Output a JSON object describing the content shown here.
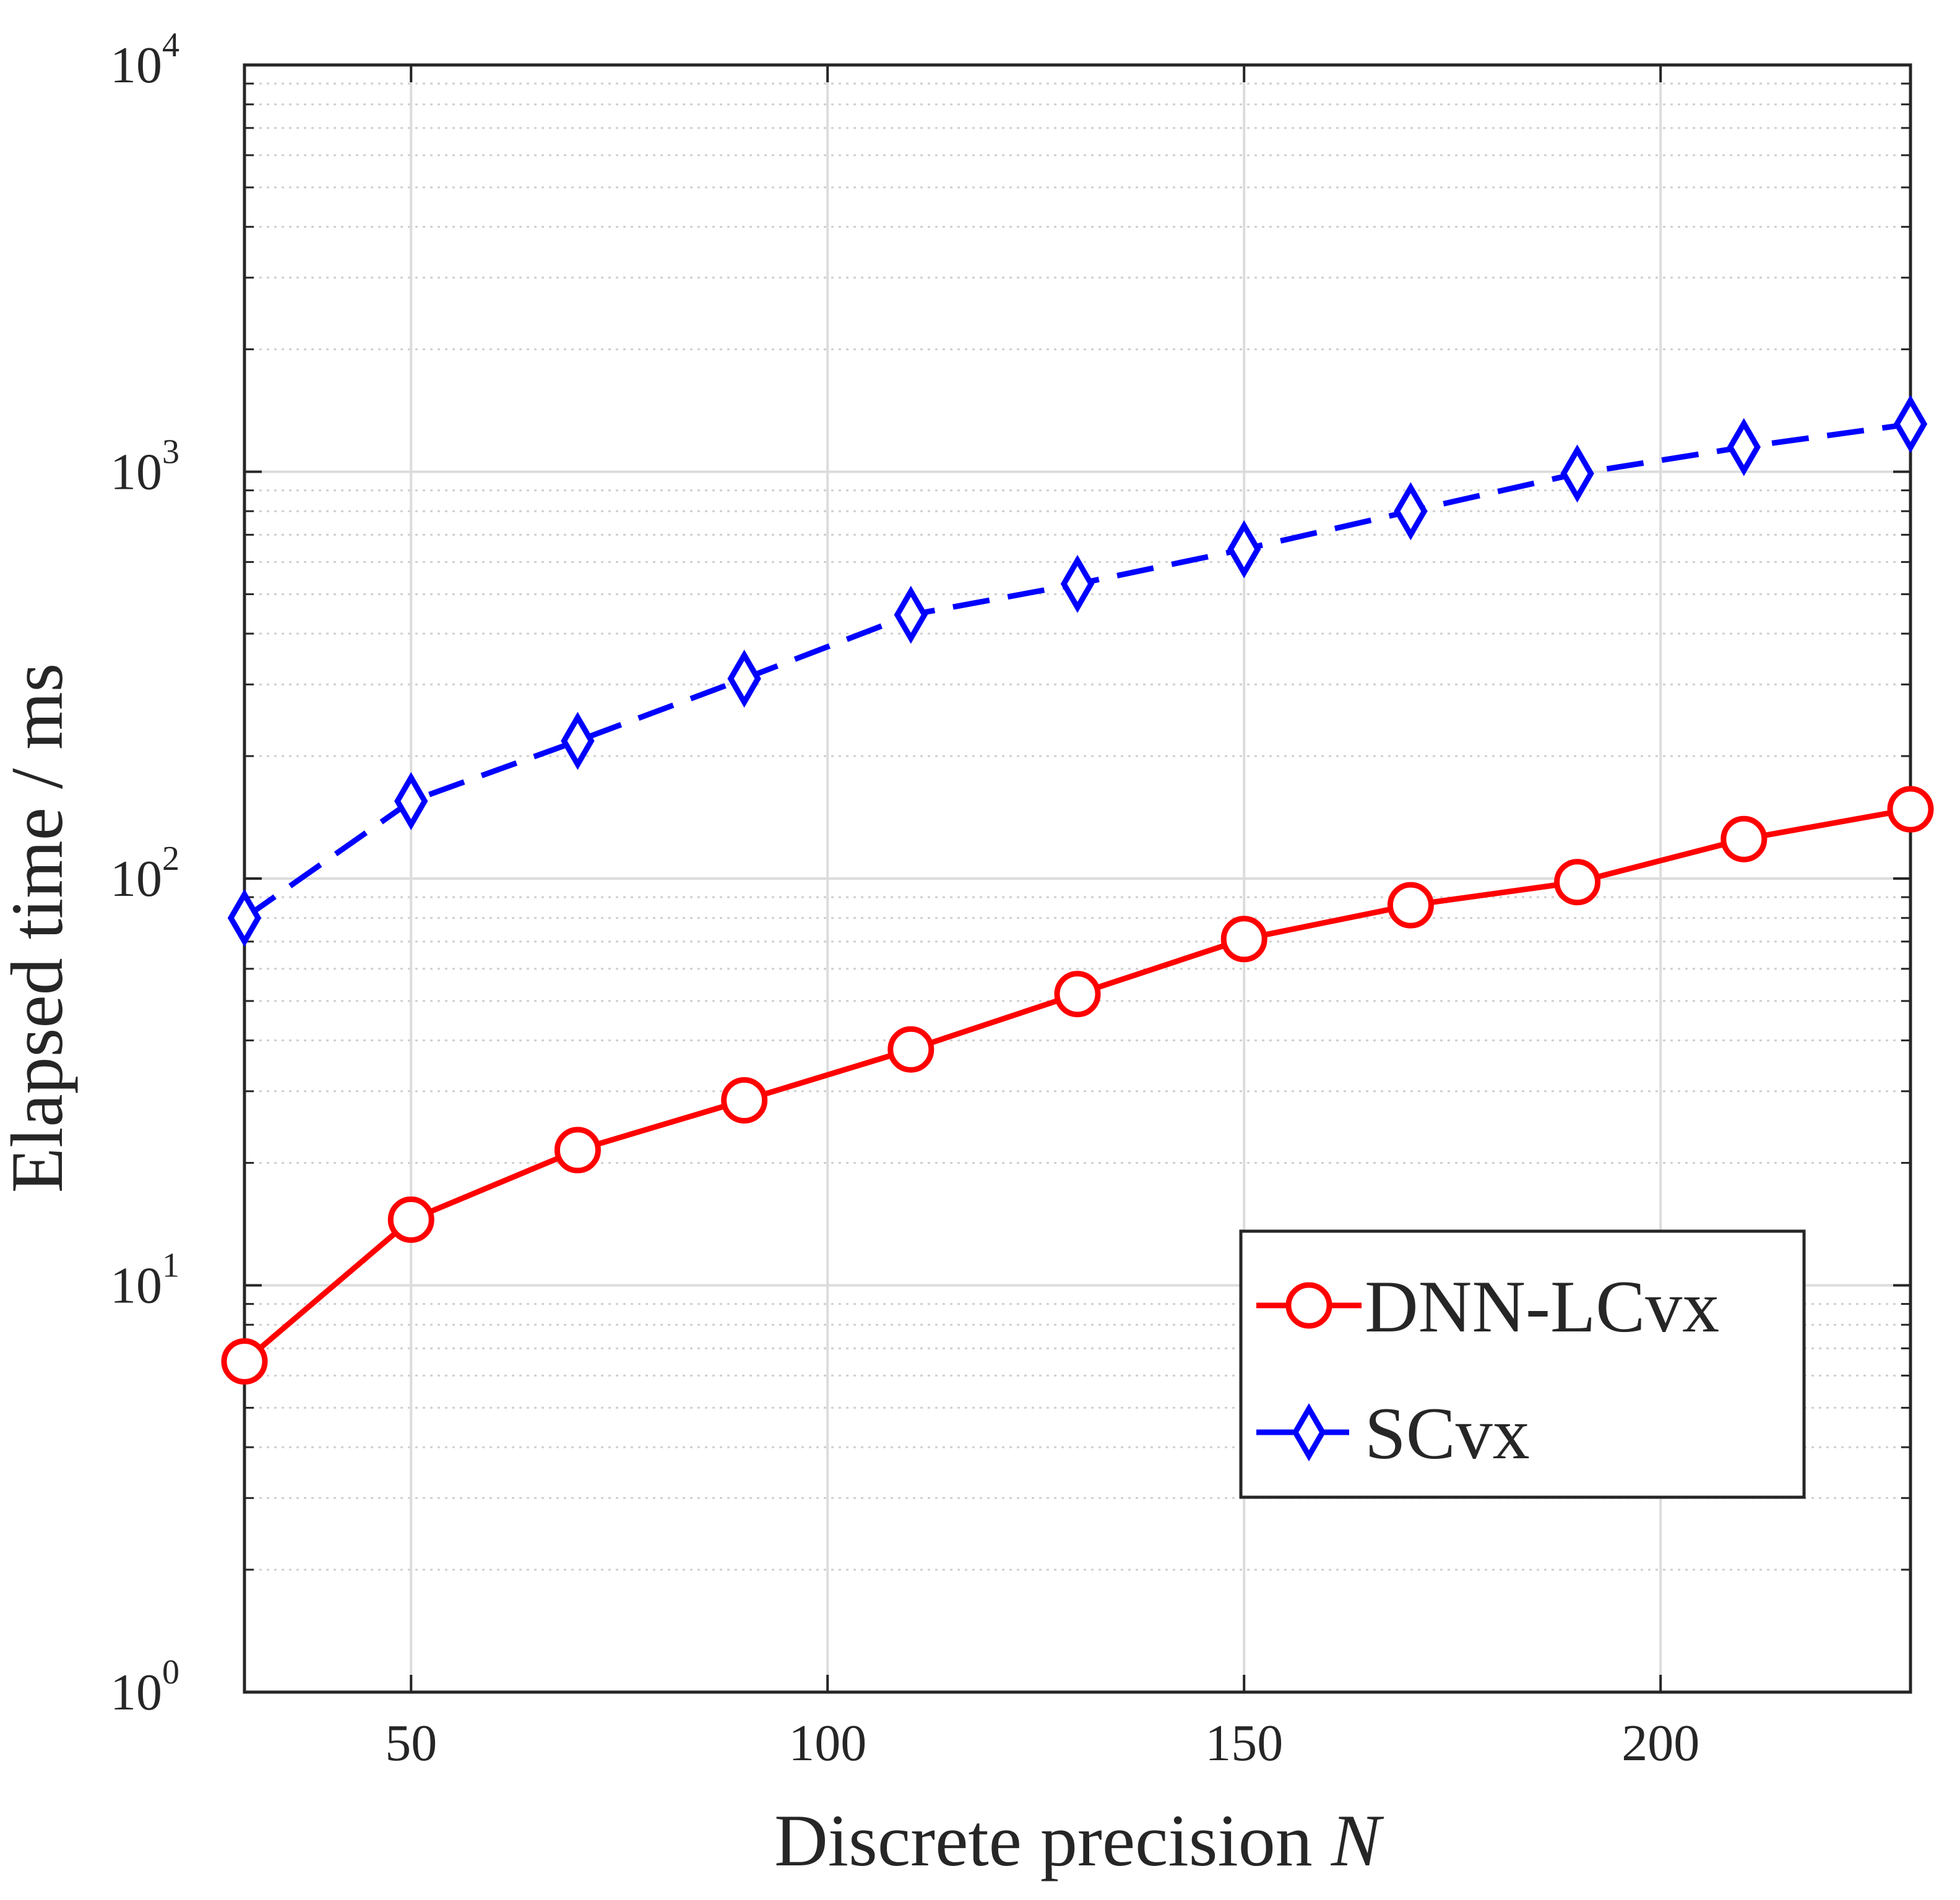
{
  "chart_data": {
    "type": "line",
    "yscale": "log",
    "xlabel": "Discrete precision",
    "xlabel_var": "N",
    "ylabel": "Elapsed time / ms",
    "xlim": [
      30,
      230
    ],
    "ylim": [
      1,
      10000
    ],
    "x_ticks": [
      50,
      100,
      150,
      200
    ],
    "y_ticks": [
      {
        "value": 1,
        "base": "10",
        "exp": "0"
      },
      {
        "value": 10,
        "base": "10",
        "exp": "1"
      },
      {
        "value": 100,
        "base": "10",
        "exp": "2"
      },
      {
        "value": 1000,
        "base": "10",
        "exp": "3"
      },
      {
        "value": 10000,
        "base": "10",
        "exp": "4"
      }
    ],
    "grid": true,
    "legend_position": "lower-right",
    "x": [
      30,
      50,
      70,
      90,
      110,
      130,
      150,
      170,
      190,
      210,
      230
    ],
    "series": [
      {
        "name": "DNN-LCvx",
        "color": "#ff0000",
        "line": "solid",
        "marker": "circle",
        "values": [
          6.5,
          14.5,
          21.5,
          28.5,
          38,
          52,
          71,
          86,
          98,
          125,
          148
        ]
      },
      {
        "name": "SCvx",
        "color": "#0000ff",
        "line": "dashed",
        "marker": "diamond",
        "values": [
          80,
          155,
          218,
          310,
          445,
          530,
          645,
          800,
          990,
          1150,
          1310
        ]
      }
    ]
  }
}
